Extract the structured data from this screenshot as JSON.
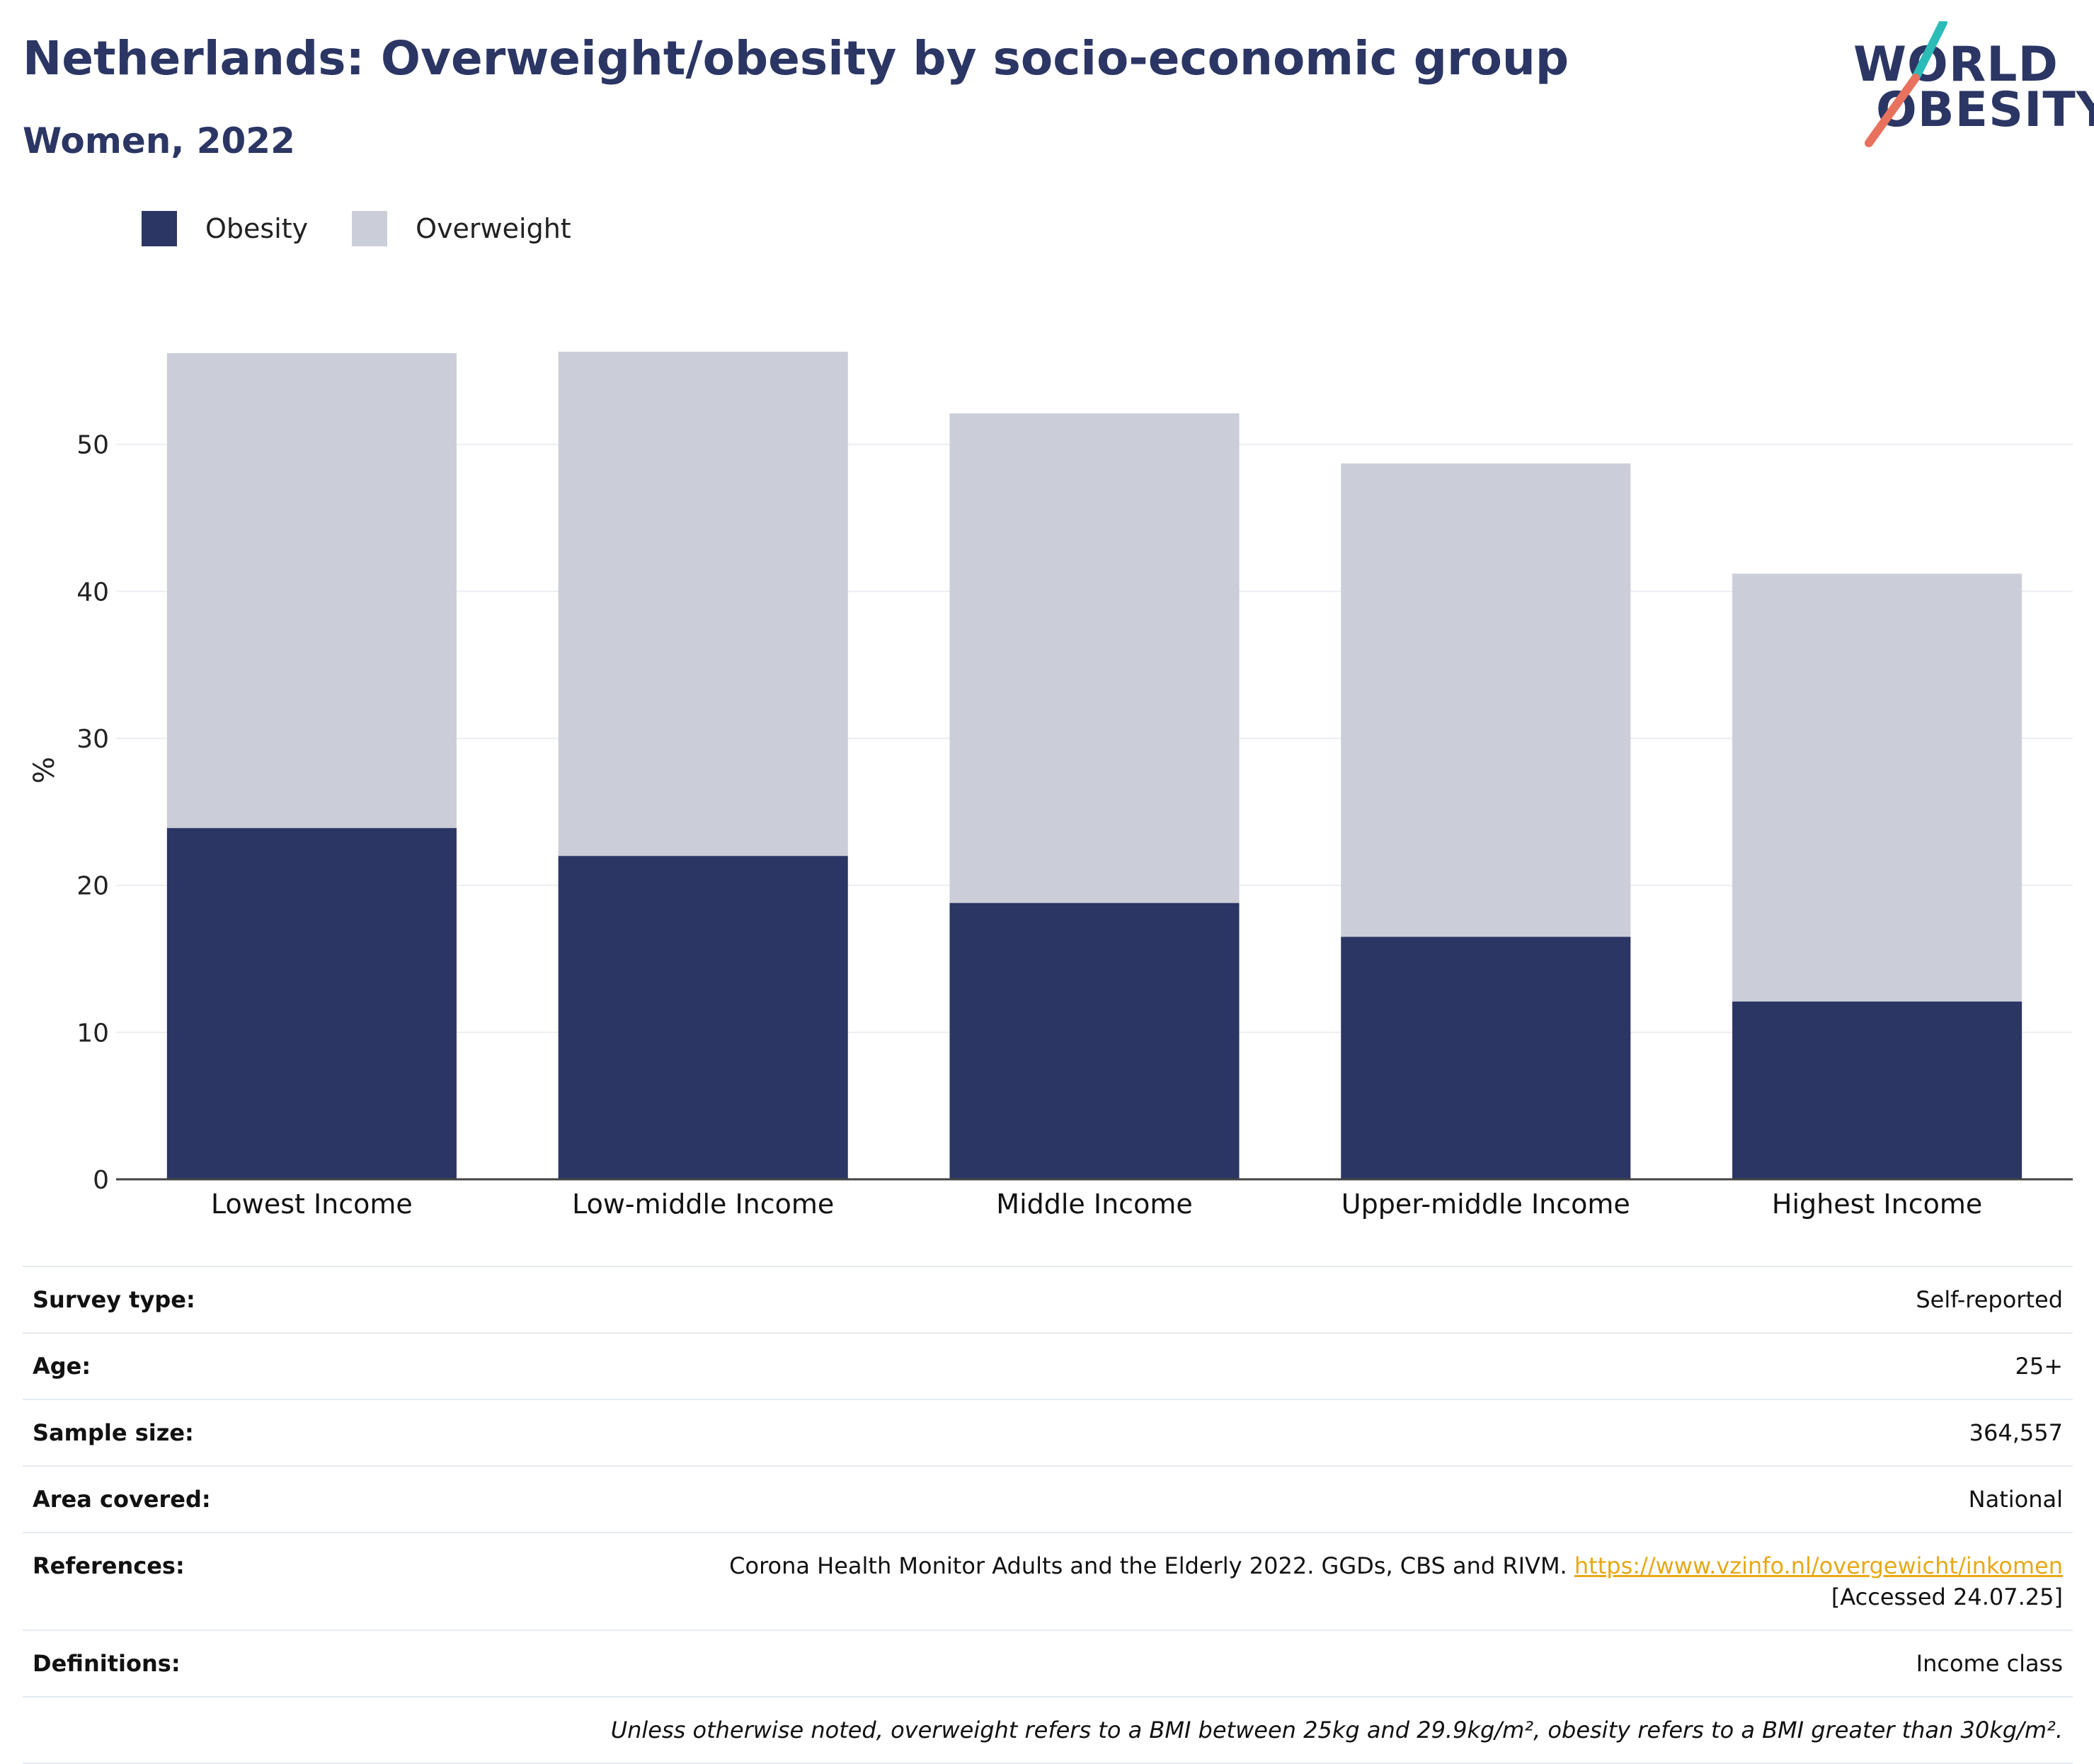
{
  "header": {
    "title": "Netherlands: Overweight/obesity by socio-economic group",
    "subtitle": "Women, 2022"
  },
  "logo": {
    "line1": "WORLD",
    "line2": "OBESITY",
    "colors": {
      "text": "#2b3664",
      "slash_top": "#2bbcb7",
      "slash_bottom": "#e8725e"
    }
  },
  "legend": [
    {
      "label": "Obesity",
      "color": "#2b3664"
    },
    {
      "label": "Overweight",
      "color": "#cbcdd8"
    }
  ],
  "chart_data": {
    "type": "bar",
    "stacked": true,
    "categories": [
      "Lowest Income",
      "Low-middle Income",
      "Middle Income",
      "Upper-middle Income",
      "Highest Income"
    ],
    "series": [
      {
        "name": "Obesity",
        "color": "#2b3664",
        "values": [
          23.9,
          22.0,
          18.8,
          16.5,
          12.1
        ]
      },
      {
        "name": "Overweight",
        "color": "#cbcdd8",
        "values": [
          32.3,
          34.3,
          33.3,
          32.2,
          29.1
        ]
      }
    ],
    "ylabel": "%",
    "ylim": [
      0,
      60
    ],
    "yticks": [
      0,
      10,
      20,
      30,
      40,
      50
    ],
    "grid": true,
    "legend_position": "top-left"
  },
  "meta": {
    "rows": [
      {
        "label": "Survey type:",
        "value": "Self-reported"
      },
      {
        "label": "Age:",
        "value": "25+"
      },
      {
        "label": "Sample size:",
        "value": "364,557"
      },
      {
        "label": "Area covered:",
        "value": "National"
      }
    ],
    "references": {
      "label": "References:",
      "text_before": "Corona Health Monitor Adults and the Elderly 2022. GGDs, CBS and RIVM. ",
      "link": "https://www.vzinfo.nl/overgewicht/inkomen",
      "text_after": " [Accessed 24.07.25]"
    },
    "definitions": {
      "label": "Definitions:",
      "value": "Income class"
    },
    "note": "Unless otherwise noted, overweight refers to a BMI between 25kg and 29.9kg/m², obesity refers to a BMI greater than 30kg/m²."
  }
}
